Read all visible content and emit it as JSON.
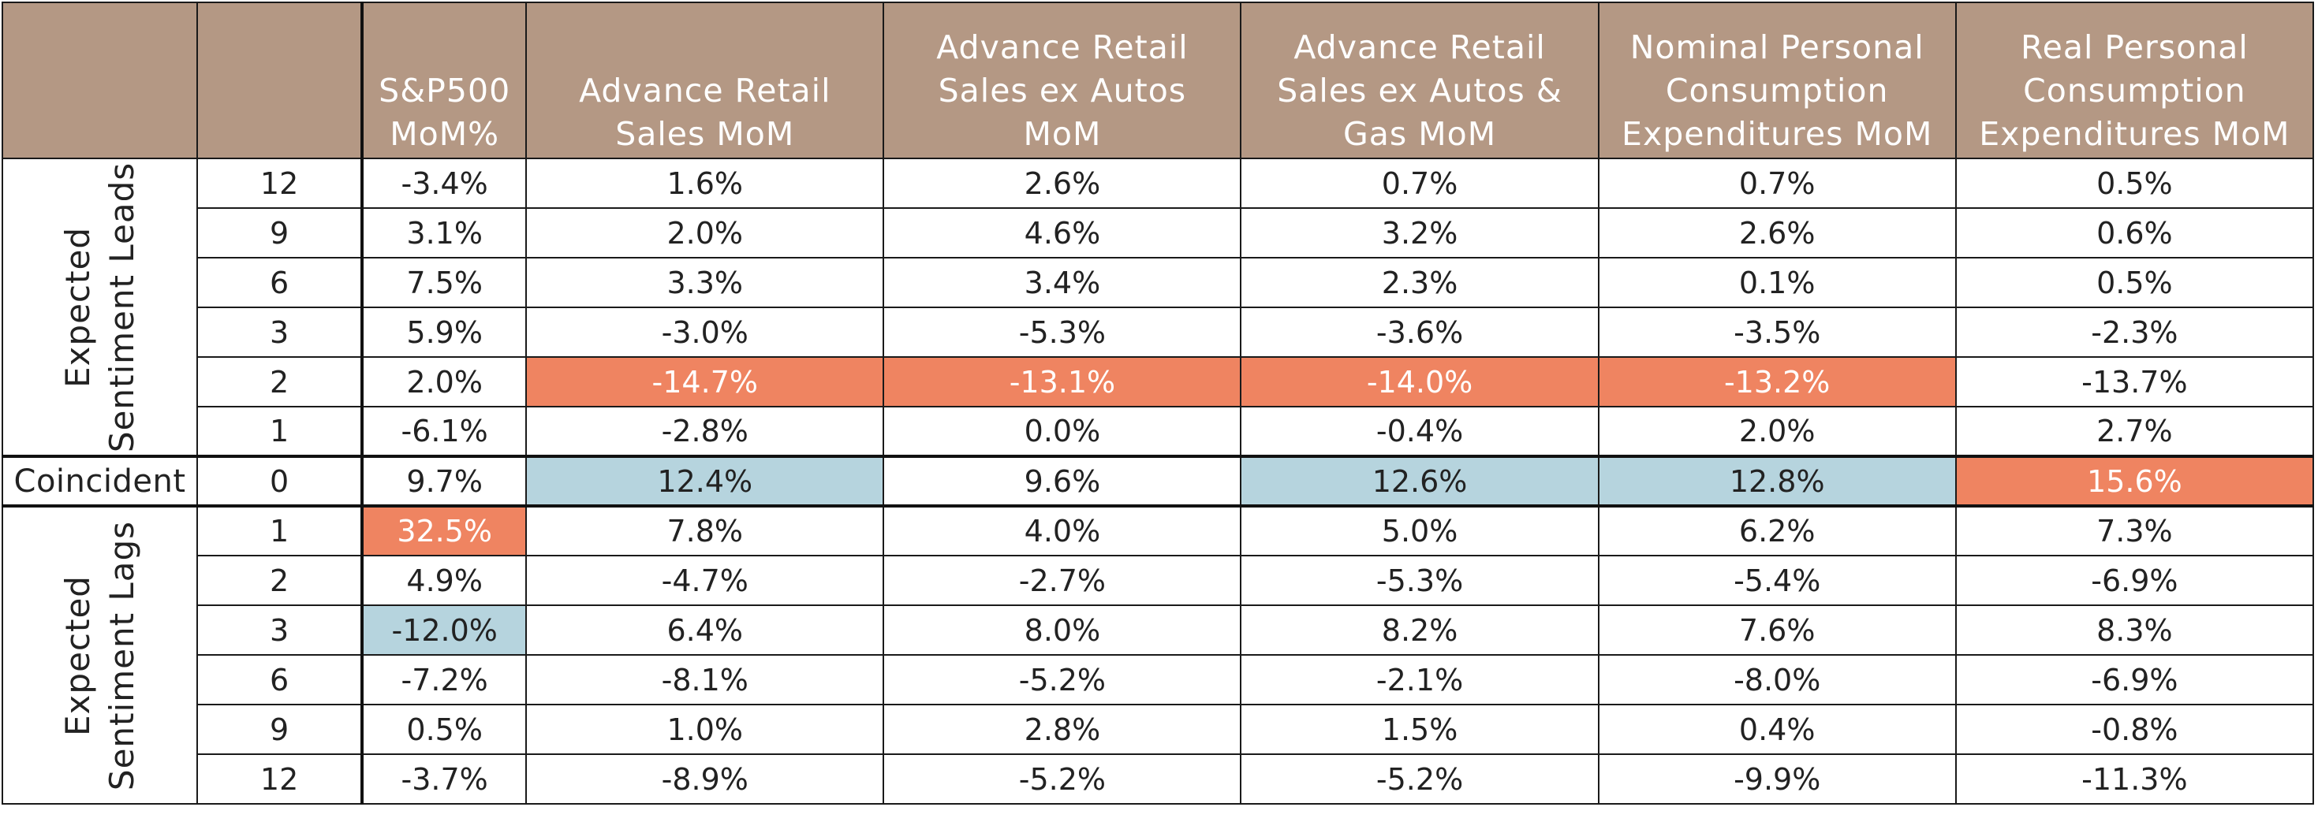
{
  "chart_data": {
    "type": "table",
    "columns": [
      "",
      "",
      "S&P500 MoM%",
      "Advance Retail Sales MoM",
      "Advance Retail Sales ex Autos MoM",
      "Advance Retail Sales ex Autos & Gas MoM",
      "Nominal Personal Consumption Expenditures MoM",
      "Real Personal Consumption Expenditures MoM"
    ],
    "header_lines": [
      [],
      [],
      [
        "S&P500",
        "MoM%"
      ],
      [
        "Advance Retail",
        "Sales MoM"
      ],
      [
        "Advance Retail",
        "Sales ex Autos",
        "MoM"
      ],
      [
        "Advance Retail",
        "Sales ex Autos &",
        "Gas MoM"
      ],
      [
        "Nominal Personal",
        "Consumption",
        "Expenditures MoM"
      ],
      [
        "Real Personal",
        "Consumption",
        "Expenditures MoM"
      ]
    ],
    "groups": [
      {
        "label_lines": [
          "Expected",
          "Sentiment Leads"
        ],
        "rows": [
          {
            "lag": "12",
            "values": [
              "-3.4%",
              "1.6%",
              "2.6%",
              "0.7%",
              "0.7%",
              "0.5%"
            ],
            "highlight": [
              "",
              "",
              "",
              "",
              "",
              ""
            ]
          },
          {
            "lag": "9",
            "values": [
              "3.1%",
              "2.0%",
              "4.6%",
              "3.2%",
              "2.6%",
              "0.6%"
            ],
            "highlight": [
              "",
              "",
              "",
              "",
              "",
              ""
            ]
          },
          {
            "lag": "6",
            "values": [
              "7.5%",
              "3.3%",
              "3.4%",
              "2.3%",
              "0.1%",
              "0.5%"
            ],
            "highlight": [
              "",
              "",
              "",
              "",
              "",
              ""
            ]
          },
          {
            "lag": "3",
            "values": [
              "5.9%",
              "-3.0%",
              "-5.3%",
              "-3.6%",
              "-3.5%",
              "-2.3%"
            ],
            "highlight": [
              "",
              "",
              "",
              "",
              "",
              ""
            ]
          },
          {
            "lag": "2",
            "values": [
              "2.0%",
              "-14.7%",
              "-13.1%",
              "-14.0%",
              "-13.2%",
              "-13.7%"
            ],
            "highlight": [
              "",
              "red",
              "red",
              "red",
              "red",
              ""
            ]
          },
          {
            "lag": "1",
            "values": [
              "-6.1%",
              "-2.8%",
              "0.0%",
              "-0.4%",
              "2.0%",
              "2.7%"
            ],
            "highlight": [
              "",
              "",
              "",
              "",
              "",
              ""
            ]
          }
        ]
      },
      {
        "label_lines": [
          "Coincident"
        ],
        "coincident": true,
        "rows": [
          {
            "lag": "0",
            "values": [
              "9.7%",
              "12.4%",
              "9.6%",
              "12.6%",
              "12.8%",
              "15.6%"
            ],
            "highlight": [
              "",
              "blue",
              "",
              "blue",
              "blue",
              "red"
            ]
          }
        ]
      },
      {
        "label_lines": [
          "Expected",
          "Sentiment Lags"
        ],
        "rows": [
          {
            "lag": "1",
            "values": [
              "32.5%",
              "7.8%",
              "4.0%",
              "5.0%",
              "6.2%",
              "7.3%"
            ],
            "highlight": [
              "red",
              "",
              "",
              "",
              "",
              ""
            ]
          },
          {
            "lag": "2",
            "values": [
              "4.9%",
              "-4.7%",
              "-2.7%",
              "-5.3%",
              "-5.4%",
              "-6.9%"
            ],
            "highlight": [
              "",
              "",
              "",
              "",
              "",
              ""
            ]
          },
          {
            "lag": "3",
            "values": [
              "-12.0%",
              "6.4%",
              "8.0%",
              "8.2%",
              "7.6%",
              "8.3%"
            ],
            "highlight": [
              "blue",
              "",
              "",
              "",
              "",
              ""
            ]
          },
          {
            "lag": "6",
            "values": [
              "-7.2%",
              "-8.1%",
              "-5.2%",
              "-2.1%",
              "-8.0%",
              "-6.9%"
            ],
            "highlight": [
              "",
              "",
              "",
              "",
              "",
              ""
            ]
          },
          {
            "lag": "9",
            "values": [
              "0.5%",
              "1.0%",
              "2.8%",
              "1.5%",
              "0.4%",
              "-0.8%"
            ],
            "highlight": [
              "",
              "",
              "",
              "",
              "",
              ""
            ]
          },
          {
            "lag": "12",
            "values": [
              "-3.7%",
              "-8.9%",
              "-5.2%",
              "-5.2%",
              "-9.9%",
              "-11.3%"
            ],
            "highlight": [
              "",
              "",
              "",
              "",
              "",
              ""
            ]
          }
        ]
      }
    ]
  },
  "colors": {
    "header_bg": "#b49884",
    "header_text": "#ffffff",
    "highlight_red": "#ef8461",
    "highlight_blue": "#b6d4de",
    "border": "#1a1a1a"
  }
}
